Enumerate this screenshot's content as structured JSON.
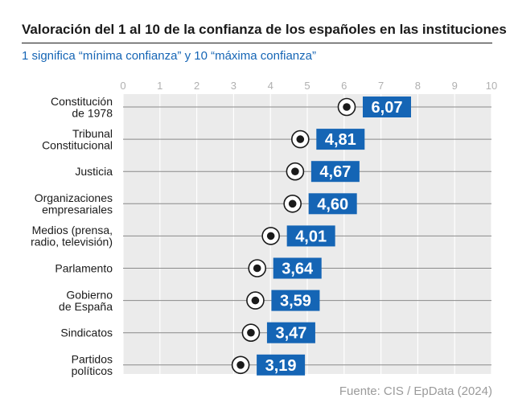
{
  "header": {
    "title": "Valoración del 1 al 10 de la confianza de los españoles en las instituciones",
    "subtitle": "1 significa “mínima confianza” y 10 “máxima confianza”"
  },
  "footer": {
    "source": "Fuente: CIS / EpData (2024)"
  },
  "colors": {
    "accent": "#1565b5",
    "plot_bg": "#ebebeb",
    "row_line": "#8a8a8a",
    "grid": "#ffffff"
  },
  "chart_data": {
    "type": "dot",
    "title": "Valoración del 1 al 10 de la confianza de los españoles en las instituciones",
    "subtitle": "1 significa “mínima confianza” y 10 “máxima confianza”",
    "xlim": [
      0,
      10
    ],
    "xticks": [
      0,
      1,
      2,
      3,
      4,
      5,
      6,
      7,
      8,
      9,
      10
    ],
    "grid": true,
    "categories": [
      [
        "Constitución",
        "de 1978"
      ],
      [
        "Tribunal",
        "Constitucional"
      ],
      [
        "Justicia"
      ],
      [
        "Organizaciones",
        "empresariales"
      ],
      [
        "Medios (prensa,",
        "radio, televisión)"
      ],
      [
        "Parlamento"
      ],
      [
        "Gobierno",
        "de España"
      ],
      [
        "Sindicatos"
      ],
      [
        "Partidos",
        "políticos"
      ]
    ],
    "values": [
      6.07,
      4.81,
      4.67,
      4.6,
      4.01,
      3.64,
      3.59,
      3.47,
      3.19
    ],
    "value_labels": [
      "6,07",
      "4,81",
      "4,67",
      "4,60",
      "4,01",
      "3,64",
      "3,59",
      "3,47",
      "3,19"
    ]
  }
}
